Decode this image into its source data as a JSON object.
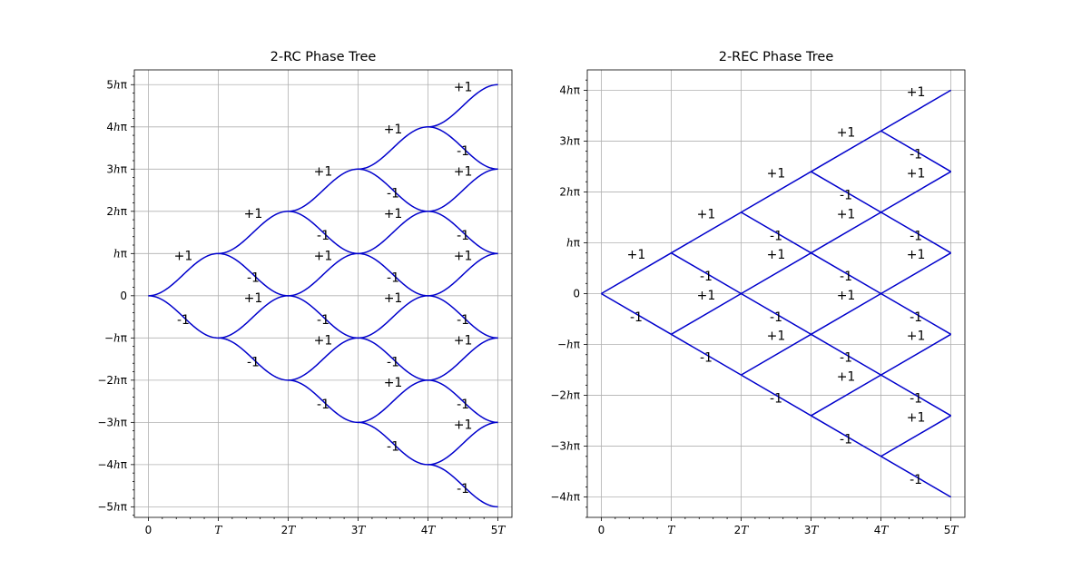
{
  "chart_data": [
    {
      "type": "line",
      "title": "2-RC Phase Tree",
      "shape": "raised-cosine",
      "xlim": [
        -0.2,
        5.2
      ],
      "ylim": [
        -5.25,
        5.35
      ],
      "grid": true,
      "x_ticks": [
        {
          "value": 0,
          "label": "0"
        },
        {
          "value": 1,
          "label": "T"
        },
        {
          "value": 2,
          "label": "2T"
        },
        {
          "value": 3,
          "label": "3T"
        },
        {
          "value": 4,
          "label": "4T"
        },
        {
          "value": 5,
          "label": "5T"
        }
      ],
      "y_ticks": [
        {
          "value": 5,
          "label": "5hπ"
        },
        {
          "value": 4,
          "label": "4hπ"
        },
        {
          "value": 3,
          "label": "3hπ"
        },
        {
          "value": 2,
          "label": "2hπ"
        },
        {
          "value": 1,
          "label": "hπ"
        },
        {
          "value": 0,
          "label": "0"
        },
        {
          "value": -1,
          "label": "−hπ"
        },
        {
          "value": -2,
          "label": "−2hπ"
        },
        {
          "value": -3,
          "label": "−3hπ"
        },
        {
          "value": -4,
          "label": "−4hπ"
        },
        {
          "value": -5,
          "label": "−5hπ"
        }
      ],
      "segments": [
        {
          "x0": 0,
          "y0": 0,
          "y1": 1,
          "label": "+1"
        },
        {
          "x0": 0,
          "y0": 0,
          "y1": -1,
          "label": "-1"
        },
        {
          "x0": 1,
          "y0": 1,
          "y1": 2,
          "label": "+1"
        },
        {
          "x0": 1,
          "y0": 1,
          "y1": 0,
          "label": "-1"
        },
        {
          "x0": 1,
          "y0": -1,
          "y1": 0,
          "label": "+1"
        },
        {
          "x0": 1,
          "y0": -1,
          "y1": -2,
          "label": "-1"
        },
        {
          "x0": 2,
          "y0": 2,
          "y1": 3,
          "label": "+1"
        },
        {
          "x0": 2,
          "y0": 2,
          "y1": 1,
          "label": "-1"
        },
        {
          "x0": 2,
          "y0": 0,
          "y1": 1,
          "label": "+1"
        },
        {
          "x0": 2,
          "y0": 0,
          "y1": -1,
          "label": "-1"
        },
        {
          "x0": 2,
          "y0": -2,
          "y1": -1,
          "label": "+1"
        },
        {
          "x0": 2,
          "y0": -2,
          "y1": -3,
          "label": "-1"
        },
        {
          "x0": 3,
          "y0": 3,
          "y1": 4,
          "label": "+1"
        },
        {
          "x0": 3,
          "y0": 3,
          "y1": 2,
          "label": "-1"
        },
        {
          "x0": 3,
          "y0": 1,
          "y1": 2,
          "label": "+1"
        },
        {
          "x0": 3,
          "y0": 1,
          "y1": 0,
          "label": "-1"
        },
        {
          "x0": 3,
          "y0": -1,
          "y1": 0,
          "label": "+1"
        },
        {
          "x0": 3,
          "y0": -1,
          "y1": -2,
          "label": "-1"
        },
        {
          "x0": 3,
          "y0": -3,
          "y1": -2,
          "label": "+1"
        },
        {
          "x0": 3,
          "y0": -3,
          "y1": -4,
          "label": "-1"
        },
        {
          "x0": 4,
          "y0": 4,
          "y1": 5,
          "label": "+1"
        },
        {
          "x0": 4,
          "y0": 4,
          "y1": 3,
          "label": "-1"
        },
        {
          "x0": 4,
          "y0": 2,
          "y1": 3,
          "label": "+1"
        },
        {
          "x0": 4,
          "y0": 2,
          "y1": 1,
          "label": "-1"
        },
        {
          "x0": 4,
          "y0": 0,
          "y1": 1,
          "label": "+1"
        },
        {
          "x0": 4,
          "y0": 0,
          "y1": -1,
          "label": "-1"
        },
        {
          "x0": 4,
          "y0": -2,
          "y1": -1,
          "label": "+1"
        },
        {
          "x0": 4,
          "y0": -2,
          "y1": -3,
          "label": "-1"
        },
        {
          "x0": 4,
          "y0": -4,
          "y1": -3,
          "label": "+1"
        },
        {
          "x0": 4,
          "y0": -4,
          "y1": -5,
          "label": "-1"
        }
      ]
    },
    {
      "type": "line",
      "title": "2-REC Phase Tree",
      "shape": "linear",
      "xlim": [
        -0.2,
        5.2
      ],
      "ylim": [
        -4.4,
        4.4
      ],
      "grid": true,
      "x_ticks": [
        {
          "value": 0,
          "label": "0"
        },
        {
          "value": 1,
          "label": "T"
        },
        {
          "value": 2,
          "label": "2T"
        },
        {
          "value": 3,
          "label": "3T"
        },
        {
          "value": 4,
          "label": "4T"
        },
        {
          "value": 5,
          "label": "5T"
        }
      ],
      "y_ticks": [
        {
          "value": 4,
          "label": "4hπ"
        },
        {
          "value": 3,
          "label": "3hπ"
        },
        {
          "value": 2,
          "label": "2hπ"
        },
        {
          "value": 1,
          "label": "hπ"
        },
        {
          "value": 0,
          "label": "0"
        },
        {
          "value": -1,
          "label": "−hπ"
        },
        {
          "value": -2,
          "label": "−2hπ"
        },
        {
          "value": -3,
          "label": "−3hπ"
        },
        {
          "value": -4,
          "label": "−4hπ"
        }
      ],
      "segments": [
        {
          "x0": 0,
          "y0": 0,
          "y1": 0.8,
          "label": "+1"
        },
        {
          "x0": 0,
          "y0": 0,
          "y1": -0.8,
          "label": "-1"
        },
        {
          "x0": 1,
          "y0": 0.8,
          "y1": 1.6,
          "label": "+1"
        },
        {
          "x0": 1,
          "y0": 0.8,
          "y1": 0,
          "label": "-1"
        },
        {
          "x0": 1,
          "y0": -0.8,
          "y1": 0,
          "label": "+1"
        },
        {
          "x0": 1,
          "y0": -0.8,
          "y1": -1.6,
          "label": "-1"
        },
        {
          "x0": 2,
          "y0": 1.6,
          "y1": 2.4,
          "label": "+1"
        },
        {
          "x0": 2,
          "y0": 1.6,
          "y1": 0.8,
          "label": "-1"
        },
        {
          "x0": 2,
          "y0": 0,
          "y1": 0.8,
          "label": "+1"
        },
        {
          "x0": 2,
          "y0": 0,
          "y1": -0.8,
          "label": "-1"
        },
        {
          "x0": 2,
          "y0": -1.6,
          "y1": -0.8,
          "label": "+1"
        },
        {
          "x0": 2,
          "y0": -1.6,
          "y1": -2.4,
          "label": "-1"
        },
        {
          "x0": 3,
          "y0": 2.4,
          "y1": 3.2,
          "label": "+1"
        },
        {
          "x0": 3,
          "y0": 2.4,
          "y1": 1.6,
          "label": "-1"
        },
        {
          "x0": 3,
          "y0": 0.8,
          "y1": 1.6,
          "label": "+1"
        },
        {
          "x0": 3,
          "y0": 0.8,
          "y1": 0,
          "label": "-1"
        },
        {
          "x0": 3,
          "y0": -0.8,
          "y1": 0,
          "label": "+1"
        },
        {
          "x0": 3,
          "y0": -0.8,
          "y1": -1.6,
          "label": "-1"
        },
        {
          "x0": 3,
          "y0": -2.4,
          "y1": -1.6,
          "label": "+1"
        },
        {
          "x0": 3,
          "y0": -2.4,
          "y1": -3.2,
          "label": "-1"
        },
        {
          "x0": 4,
          "y0": 3.2,
          "y1": 4.0,
          "label": "+1"
        },
        {
          "x0": 4,
          "y0": 3.2,
          "y1": 2.4,
          "label": "-1"
        },
        {
          "x0": 4,
          "y0": 1.6,
          "y1": 2.4,
          "label": "+1"
        },
        {
          "x0": 4,
          "y0": 1.6,
          "y1": 0.8,
          "label": "-1"
        },
        {
          "x0": 4,
          "y0": 0,
          "y1": 0.8,
          "label": "+1"
        },
        {
          "x0": 4,
          "y0": 0,
          "y1": -0.8,
          "label": "-1"
        },
        {
          "x0": 4,
          "y0": -1.6,
          "y1": -0.8,
          "label": "+1"
        },
        {
          "x0": 4,
          "y0": -1.6,
          "y1": -2.4,
          "label": "-1"
        },
        {
          "x0": 4,
          "y0": -3.2,
          "y1": -2.4,
          "label": "+1"
        },
        {
          "x0": 4,
          "y0": -3.2,
          "y1": -4.0,
          "label": "-1"
        }
      ]
    }
  ]
}
